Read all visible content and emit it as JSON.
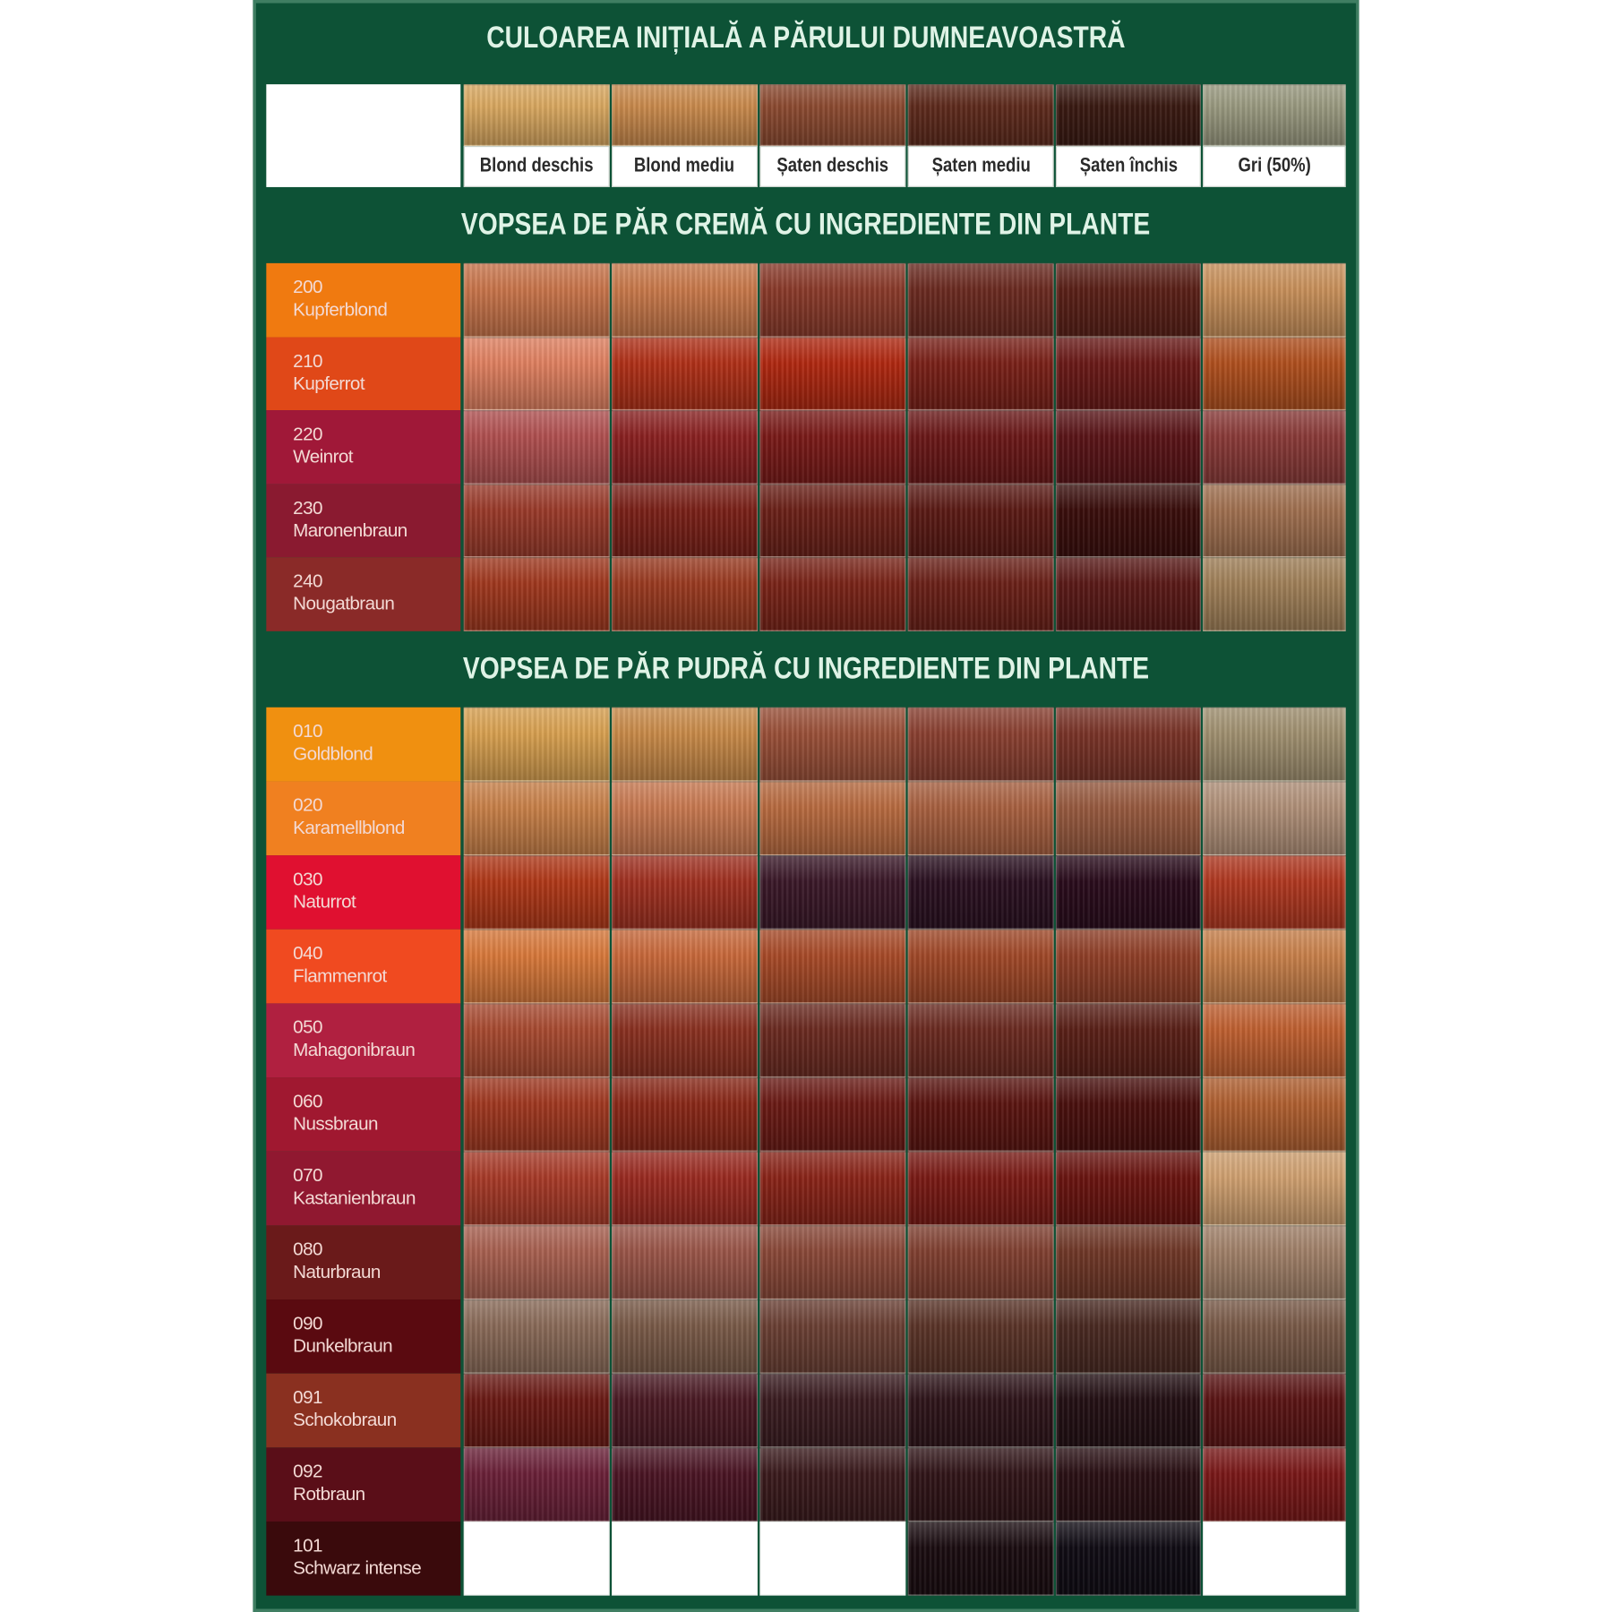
{
  "headings": {
    "initial": "CULOAREA INIȚIALĂ A PĂRULUI DUMNEAVOASTRĂ",
    "cream": "VOPSEA DE PĂR CREMĂ CU INGREDIENTE DIN PLANTE",
    "powder": "VOPSEA DE PĂR PUDRĂ CU INGREDIENTE DIN PLANTE"
  },
  "colors": {
    "panel_green": "#0d5236",
    "heading_text": "#dff3e6"
  },
  "initial_colors": [
    {
      "label": "Blond deschis",
      "swatch": "#d9a860"
    },
    {
      "label": "Blond mediu",
      "swatch": "#c98a4c"
    },
    {
      "label": "Șaten deschis",
      "swatch": "#8c4a30"
    },
    {
      "label": "Șaten mediu",
      "swatch": "#5e2a1c"
    },
    {
      "label": "Șaten închis",
      "swatch": "#3a1a12"
    },
    {
      "label": "Gri (50%)",
      "swatch": "#9a9a80"
    }
  ],
  "cream_shades": [
    {
      "code": "200",
      "name": "Kupferblond",
      "label_color": "#f07a10",
      "results": [
        "#c8744a",
        "#c8784a",
        "#8a3a2a",
        "#6a2a20",
        "#5a2018",
        "#c8905a"
      ]
    },
    {
      "code": "210",
      "name": "Kupferrot",
      "label_color": "#e04818",
      "results": [
        "#e08060",
        "#b03018",
        "#b02810",
        "#7a2018",
        "#6a1a18",
        "#b0501e"
      ]
    },
    {
      "code": "220",
      "name": "Weinrot",
      "label_color": "#a01838",
      "results": [
        "#b05050",
        "#8a2020",
        "#7a1a18",
        "#6a1818",
        "#5a1418",
        "#8a3a38"
      ]
    },
    {
      "code": "230",
      "name": "Maronenbraun",
      "label_color": "#8a1a30",
      "results": [
        "#9a3a2a",
        "#7a2018",
        "#6a2018",
        "#5a1a14",
        "#3a0e0c",
        "#a07050"
      ]
    },
    {
      "code": "240",
      "name": "Nougatbraun",
      "label_color": "#8a2a28",
      "results": [
        "#a0381e",
        "#9a3a20",
        "#7a2418",
        "#6a2018",
        "#5a1a18",
        "#a08058"
      ]
    }
  ],
  "powder_shades": [
    {
      "code": "010",
      "name": "Goldblond",
      "label_color": "#f09010",
      "results": [
        "#d8a050",
        "#c88a48",
        "#9a5038",
        "#8a4030",
        "#7a3428",
        "#a09070"
      ]
    },
    {
      "code": "020",
      "name": "Karamellblond",
      "label_color": "#f08020",
      "results": [
        "#c88048",
        "#c87850",
        "#b86a40",
        "#a86040",
        "#985a40",
        "#b09078"
      ]
    },
    {
      "code": "030",
      "name": "Naturrot",
      "label_color": "#e01030",
      "results": [
        "#b03818",
        "#a03020",
        "#3a1828",
        "#2a1020",
        "#2a0c1c",
        "#b03820"
      ]
    },
    {
      "code": "040",
      "name": "Flammenrot",
      "label_color": "#f04a20",
      "results": [
        "#d8783a",
        "#c8683a",
        "#a84a28",
        "#a04828",
        "#904028",
        "#c8804a"
      ]
    },
    {
      "code": "050",
      "name": "Mahagonibraun",
      "label_color": "#b02040",
      "results": [
        "#a84a30",
        "#8a3020",
        "#6a2a20",
        "#6a2a20",
        "#5a2018",
        "#c06030"
      ]
    },
    {
      "code": "060",
      "name": "Nussbraun",
      "label_color": "#a01830",
      "results": [
        "#a03820",
        "#8a2818",
        "#6a1a14",
        "#5a1410",
        "#4a100e",
        "#b06030"
      ]
    },
    {
      "code": "070",
      "name": "Kastanienbraun",
      "label_color": "#901830",
      "results": [
        "#a83a28",
        "#9a2a20",
        "#8a2418",
        "#7a1a14",
        "#6a1410",
        "#d0a070"
      ]
    },
    {
      "code": "080",
      "name": "Naturbraun",
      "label_color": "#6a1a1a",
      "results": [
        "#a86050",
        "#9a5548",
        "#8a4838",
        "#804030",
        "#703828",
        "#a08068"
      ]
    },
    {
      "code": "090",
      "name": "Dunkelbraun",
      "label_color": "#5a0a10",
      "results": [
        "#8a6a58",
        "#7a5a48",
        "#6a4034",
        "#5a3428",
        "#4a2a22",
        "#7a5a48"
      ]
    },
    {
      "code": "091",
      "name": "Schokobraun",
      "label_color": "#8a3020",
      "results": [
        "#6a1a14",
        "#4a1a24",
        "#3a1c20",
        "#2e141a",
        "#241014",
        "#5a1414"
      ]
    },
    {
      "code": "092",
      "name": "Rotbraun",
      "label_color": "#5a0e18",
      "results": [
        "#6a2038",
        "#4a1424",
        "#3a1a1c",
        "#301418",
        "#2a1014",
        "#7a1818"
      ]
    },
    {
      "code": "101",
      "name": "Schwarz intense",
      "label_color": "#3a0a0c",
      "results": [
        "#ffffff",
        "#ffffff",
        "#ffffff",
        "#1a0c10",
        "#100c14",
        "#ffffff"
      ]
    }
  ]
}
